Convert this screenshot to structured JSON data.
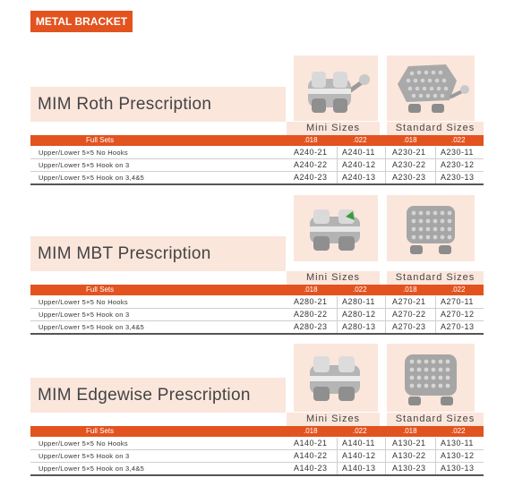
{
  "header": {
    "badge": "METAL BRACKET"
  },
  "sections": [
    {
      "title": "MIM Roth Prescription",
      "mini_label": "Mini Sizes",
      "standard_label": "Standard Sizes",
      "full_sets": "Full Sets",
      "slots": [
        ".018",
        ".022",
        ".018",
        ".022"
      ],
      "rows": [
        {
          "desc": "Upper/Lower 5×5 No Hooks",
          "c": [
            "A240-21",
            "A240-11",
            "A230-21",
            "A230-11"
          ]
        },
        {
          "desc": "Upper/Lower 5×5 Hook on 3",
          "c": [
            "A240-22",
            "A240-12",
            "A230-22",
            "A230-12"
          ]
        },
        {
          "desc": "Upper/Lower 5×5 Hook on 3,4&5",
          "c": [
            "A240-23",
            "A240-13",
            "A230-23",
            "A230-13"
          ]
        }
      ]
    },
    {
      "title": "MIM MBT Prescription",
      "mini_label": "Mini Sizes",
      "standard_label": "Standard Sizes",
      "full_sets": "Full Sets",
      "slots": [
        ".018",
        ".022",
        ".018",
        ".022"
      ],
      "rows": [
        {
          "desc": "Upper/Lower 5×5 No Hooks",
          "c": [
            "A280-21",
            "A280-11",
            "A270-21",
            "A270-11"
          ]
        },
        {
          "desc": "Upper/Lower 5×5 Hook on 3",
          "c": [
            "A280-22",
            "A280-12",
            "A270-22",
            "A270-12"
          ]
        },
        {
          "desc": "Upper/Lower 5×5 Hook on 3,4&5",
          "c": [
            "A280-23",
            "A280-13",
            "A270-23",
            "A270-13"
          ]
        }
      ]
    },
    {
      "title": "MIM Edgewise Prescription",
      "mini_label": "Mini Sizes",
      "standard_label": "Standard Sizes",
      "full_sets": "Full Sets",
      "slots": [
        ".018",
        ".022",
        ".018",
        ".022"
      ],
      "rows": [
        {
          "desc": "Upper/Lower 5×5 No Hooks",
          "c": [
            "A140-21",
            "A140-11",
            "A130-21",
            "A130-11"
          ]
        },
        {
          "desc": "Upper/Lower 5×5 Hook on 3",
          "c": [
            "A140-22",
            "A140-12",
            "A130-22",
            "A130-12"
          ]
        },
        {
          "desc": "Upper/Lower 5×5 Hook on 3,4&5",
          "c": [
            "A140-23",
            "A140-13",
            "A130-23",
            "A130-13"
          ]
        }
      ]
    }
  ]
}
